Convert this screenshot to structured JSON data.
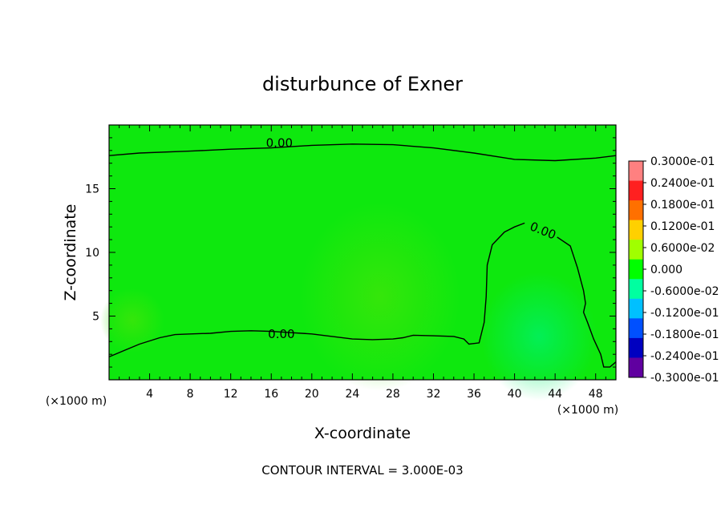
{
  "chart_data": {
    "type": "heatmap",
    "title": "disturbunce of Exner",
    "xlabel": "X-coordinate",
    "ylabel": "Z-coordinate",
    "x_units": "(×1000 m)",
    "z_units": "(×1000 m)",
    "xlim": [
      0,
      50
    ],
    "ylim": [
      0,
      20
    ],
    "x_ticks": [
      4,
      8,
      12,
      16,
      20,
      24,
      28,
      32,
      36,
      40,
      44,
      48
    ],
    "y_ticks": [
      5,
      10,
      15
    ],
    "footer": "CONTOUR INTERVAL = 3.000E-03",
    "colorbar": {
      "range": [
        -0.03,
        0.03
      ],
      "labels": [
        "0.3000e-01",
        "0.2400e-01",
        "0.1800e-01",
        "0.1200e-01",
        "0.6000e-02",
        "0.000",
        "-0.6000e-02",
        "-0.1200e-01",
        "-0.1800e-01",
        "-0.2400e-01",
        "-0.3000e-01"
      ],
      "colors": [
        "#ff8080",
        "#ff2020",
        "#ff7000",
        "#ffd000",
        "#a0ff00",
        "#00ff00",
        "#00ffa0",
        "#00c0ff",
        "#0050ff",
        "#0000c0",
        "#6000a0"
      ]
    },
    "background_color": "#0ee80e",
    "contours": [
      {
        "label": "0.00",
        "label_at": [
          16.8,
          18.6
        ],
        "points": [
          [
            0,
            17.6
          ],
          [
            3,
            17.8
          ],
          [
            8,
            17.95
          ],
          [
            12,
            18.1
          ],
          [
            16,
            18.2
          ],
          [
            20,
            18.4
          ],
          [
            24,
            18.5
          ],
          [
            28,
            18.45
          ],
          [
            32,
            18.2
          ],
          [
            36,
            17.8
          ],
          [
            40,
            17.3
          ],
          [
            44,
            17.2
          ],
          [
            48,
            17.4
          ],
          [
            50,
            17.6
          ]
        ]
      },
      {
        "label": "0.00",
        "label_at": [
          17,
          3.6
        ],
        "points": [
          [
            0,
            1.8
          ],
          [
            1.5,
            2.3
          ],
          [
            3,
            2.8
          ],
          [
            5,
            3.3
          ],
          [
            6.5,
            3.55
          ],
          [
            8,
            3.6
          ],
          [
            10,
            3.65
          ],
          [
            12,
            3.8
          ],
          [
            14,
            3.85
          ],
          [
            16,
            3.8
          ],
          [
            18,
            3.7
          ],
          [
            20,
            3.6
          ],
          [
            22,
            3.4
          ],
          [
            24,
            3.2
          ],
          [
            26,
            3.15
          ],
          [
            28,
            3.2
          ],
          [
            29,
            3.3
          ],
          [
            30,
            3.5
          ],
          [
            32,
            3.45
          ],
          [
            34,
            3.4
          ],
          [
            35,
            3.2
          ],
          [
            35.5,
            2.8
          ],
          [
            36.5,
            2.9
          ],
          [
            37,
            4.5
          ],
          [
            37.2,
            6.5
          ],
          [
            37.3,
            9.0
          ],
          [
            37.8,
            10.6
          ],
          [
            39,
            11.6
          ],
          [
            40,
            12.0
          ],
          [
            41,
            12.3
          ]
        ]
      },
      {
        "label": "0.00",
        "label_at": [
          42.8,
          11.7
        ],
        "points": [
          [
            44.2,
            11.2
          ],
          [
            45.5,
            10.5
          ],
          [
            46.2,
            8.8
          ],
          [
            46.8,
            7.0
          ],
          [
            47,
            6.0
          ],
          [
            46.8,
            5.3
          ],
          [
            47.2,
            4.5
          ],
          [
            47.8,
            3.2
          ],
          [
            48.5,
            2.0
          ],
          [
            48.8,
            1.0
          ],
          [
            49.4,
            1.0
          ],
          [
            50,
            1.4
          ]
        ]
      }
    ]
  }
}
